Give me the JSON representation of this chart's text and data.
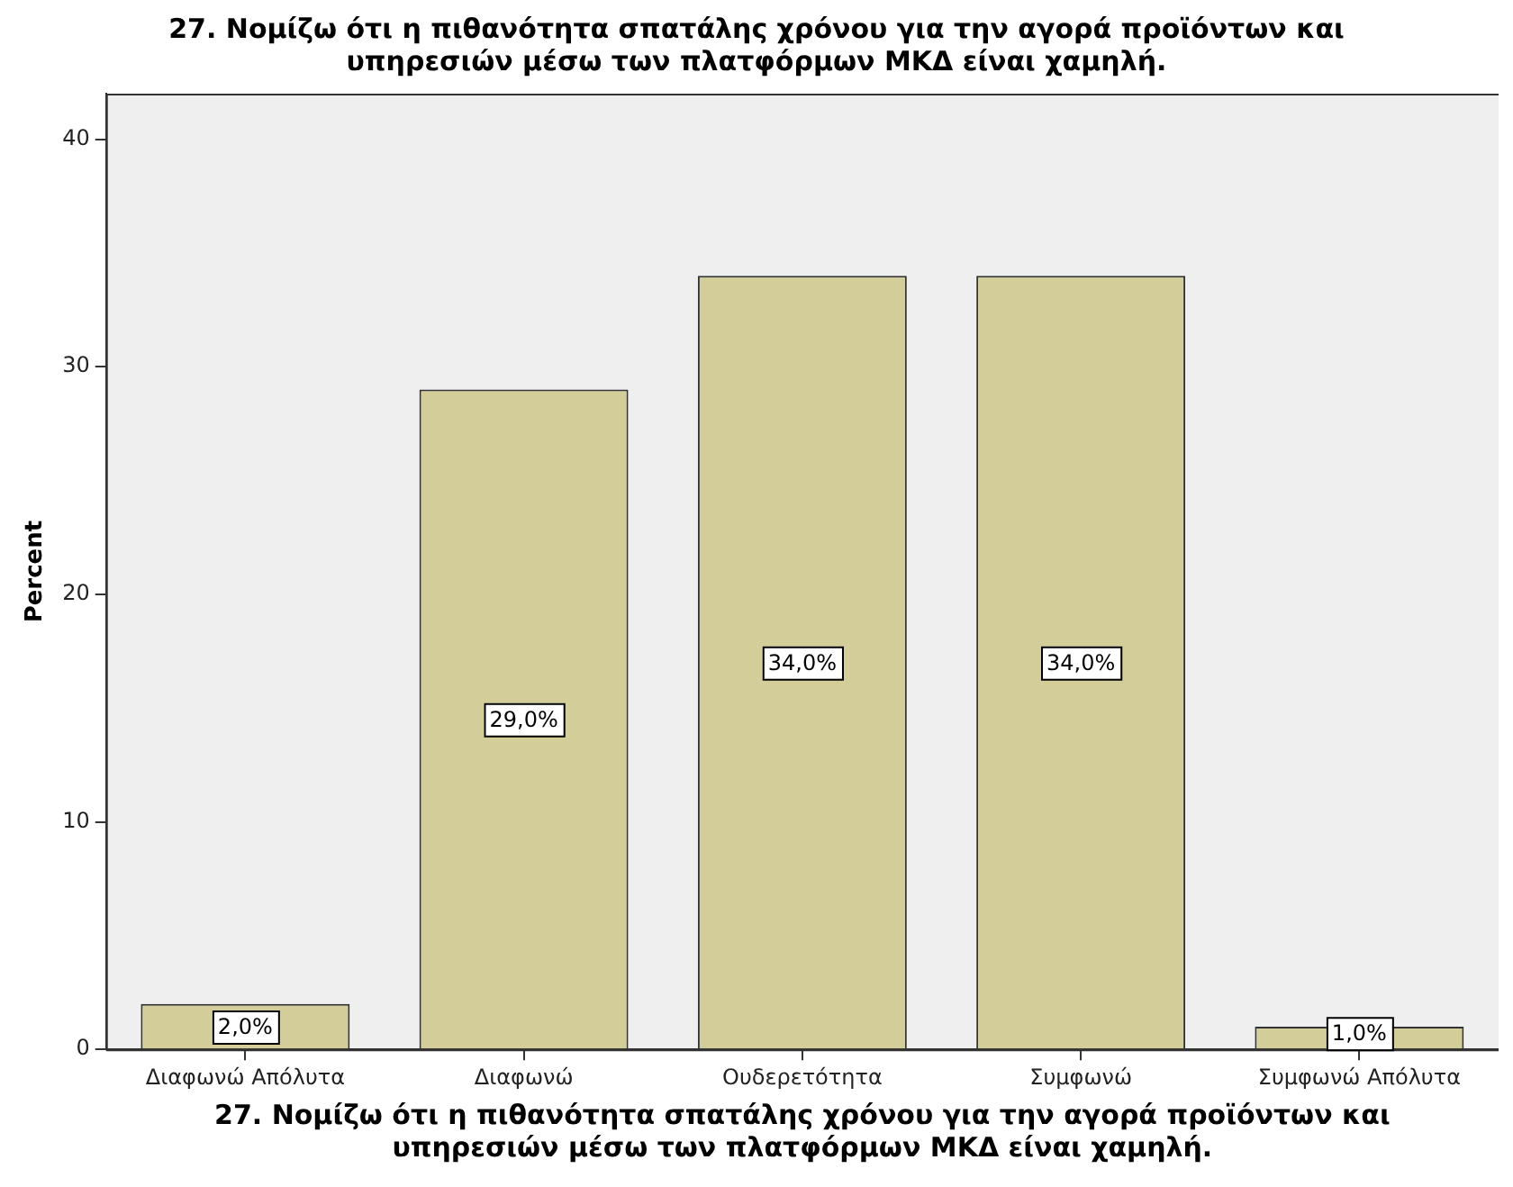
{
  "chart_data": {
    "type": "bar",
    "title": "27. Νομίζω ότι η πιθανότητα σπατάλης χρόνου για την αγορά προϊόντων και\nυπηρεσιών μέσω των πλατφόρμων ΜΚΔ είναι χαμηλή.",
    "xlabel": "27. Νομίζω ότι η πιθανότητα σπατάλης χρόνου για την αγορά προϊόντων και\nυπηρεσιών μέσω των πλατφόρμων ΜΚΔ είναι χαμηλή.",
    "ylabel": "Percent",
    "categories": [
      "Διαφωνώ Απόλυτα",
      "Διαφωνώ",
      "Ουδερετότητα",
      "Συμφωνώ",
      "Συμφωνώ Απόλυτα"
    ],
    "values": [
      2,
      29,
      34,
      34,
      1
    ],
    "value_labels": [
      "2,0%",
      "29,0%",
      "34,0%",
      "34,0%",
      "1,0%"
    ],
    "color": "#d3ce99",
    "ylim": [
      0,
      42
    ],
    "yticks": [
      0,
      10,
      20,
      30,
      40
    ],
    "grid": false,
    "legend": false
  }
}
